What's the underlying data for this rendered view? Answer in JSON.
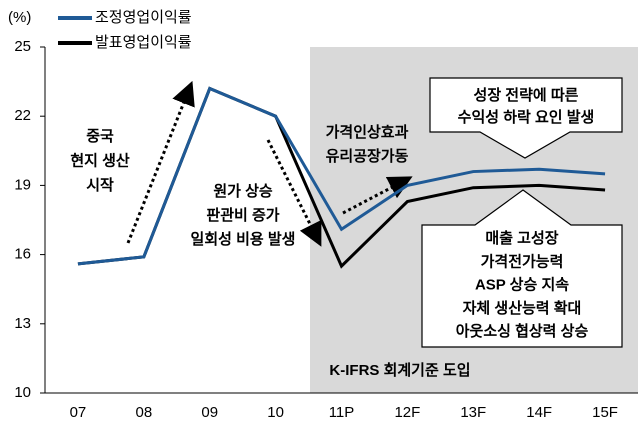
{
  "chart_data": {
    "type": "line",
    "y_label": "(%)",
    "categories": [
      "07",
      "08",
      "09",
      "10",
      "11P",
      "12F",
      "13F",
      "14F",
      "15F"
    ],
    "series": [
      {
        "name": "조정영업이익률",
        "color": "#1f5a96",
        "values": [
          15.6,
          15.9,
          23.2,
          22.0,
          17.1,
          19.0,
          19.6,
          19.7,
          19.5
        ]
      },
      {
        "name": "발표영업이익률",
        "color": "#000000",
        "values": [
          15.6,
          15.9,
          23.2,
          22.0,
          15.5,
          18.3,
          18.9,
          19.0,
          18.8
        ]
      }
    ],
    "ylim": [
      10,
      25
    ],
    "yticks": [
      10,
      13,
      16,
      19,
      22,
      25
    ],
    "shaded_label": "K-IFRS 회계기준 도입",
    "annotations": [
      [
        "중국",
        "현지 생산",
        "시작"
      ],
      [
        "원가 상승",
        "판관비 증가",
        "일회성 비용 발생"
      ],
      [
        "가격인상효과",
        "유리공장가동"
      ],
      [
        "성장 전략에 따른",
        "수익성 하락 요인 발생"
      ],
      [
        "매출 고성장",
        "가격전가능력",
        "ASP 상승 지속",
        "자체 생산능력 확대",
        "아웃소싱 협상력 상승"
      ]
    ]
  }
}
